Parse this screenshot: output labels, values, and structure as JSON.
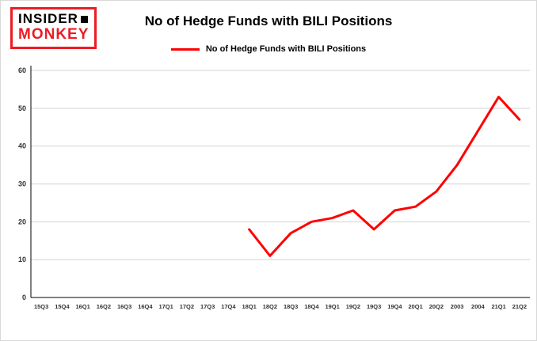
{
  "logo": {
    "line1": "INSIDER",
    "line2": "MONKEY"
  },
  "header": {
    "title": "No of Hedge Funds with BILI Positions"
  },
  "legend": {
    "label": "No of Hedge Funds with BILI Positions",
    "color": "#ff0000"
  },
  "colors": {
    "grid": "#d3d3d3",
    "axis": "#000000",
    "tick_text": "#333333"
  },
  "chart_data": {
    "type": "line",
    "title": "No of Hedge Funds with BILI Positions",
    "categories": [
      "15Q3",
      "15Q4",
      "16Q1",
      "16Q2",
      "16Q3",
      "16Q4",
      "17Q1",
      "17Q2",
      "17Q3",
      "17Q4",
      "18Q1",
      "18Q2",
      "18Q3",
      "18Q4",
      "19Q1",
      "19Q2",
      "19Q3",
      "19Q4",
      "20Q1",
      "20Q2",
      "2003",
      "2004",
      "21Q1",
      "21Q2"
    ],
    "series": [
      {
        "name": "No of Hedge Funds with BILI Positions",
        "color": "#ff0000",
        "values": [
          null,
          null,
          null,
          null,
          null,
          null,
          null,
          null,
          null,
          null,
          18,
          11,
          17,
          20,
          21,
          23,
          18,
          23,
          24,
          28,
          35,
          44,
          53,
          47
        ]
      }
    ],
    "xlabel": "",
    "ylabel": "",
    "ylim": [
      0,
      60
    ],
    "yticks": [
      0,
      10,
      20,
      30,
      40,
      50,
      60
    ],
    "grid": true,
    "legend_position": "top"
  }
}
